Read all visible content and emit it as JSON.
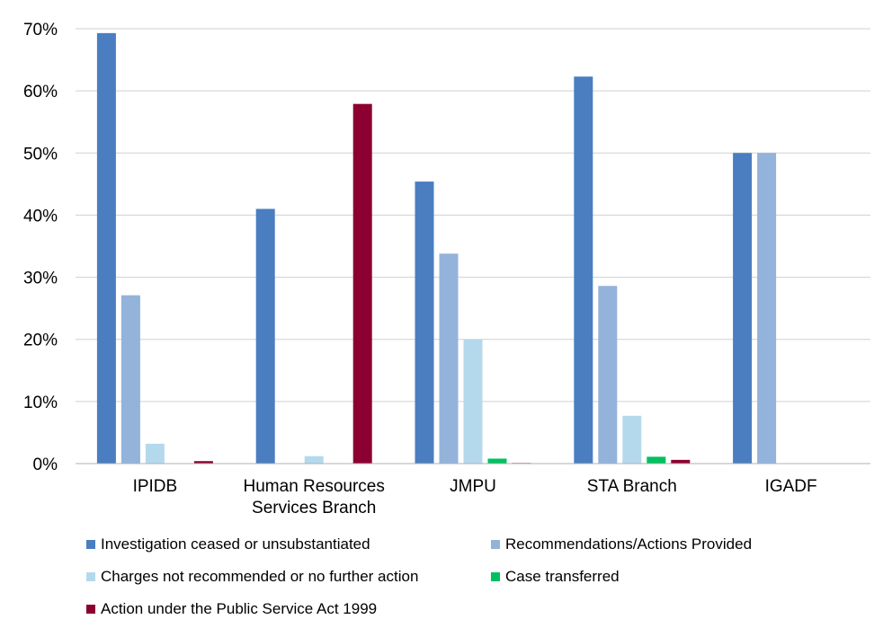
{
  "chart_data": {
    "type": "bar",
    "categories": [
      [
        "IPIDB"
      ],
      [
        "Human Resources",
        "Services Branch"
      ],
      [
        "JMPU"
      ],
      [
        "STA Branch"
      ],
      [
        "IGADF"
      ]
    ],
    "series": [
      {
        "name": "Investigation ceased or unsubstantiated",
        "color": "#4a7ec0",
        "values": [
          69.3,
          41.0,
          45.4,
          62.3,
          50.0
        ]
      },
      {
        "name": "Recommendations/Actions Provided",
        "color": "#93b3da",
        "values": [
          27.1,
          0,
          33.8,
          28.6,
          50.0
        ]
      },
      {
        "name": "Charges not recommended or no further action",
        "color": "#b5d9ec",
        "values": [
          3.2,
          1.2,
          20.0,
          7.7,
          0
        ]
      },
      {
        "name": "Case transferred",
        "color": "#00c060",
        "values": [
          0,
          0,
          0.8,
          1.1,
          0
        ]
      },
      {
        "name": "Action under the Public Service Act 1999",
        "color": "#8b0030",
        "values": [
          0.4,
          57.9,
          0.1,
          0.6,
          0
        ]
      }
    ],
    "yticks": [
      "0%",
      "10%",
      "20%",
      "30%",
      "40%",
      "50%",
      "60%",
      "70%"
    ],
    "ylim": [
      0,
      70
    ],
    "grid": true,
    "legend_position": "bottom"
  }
}
